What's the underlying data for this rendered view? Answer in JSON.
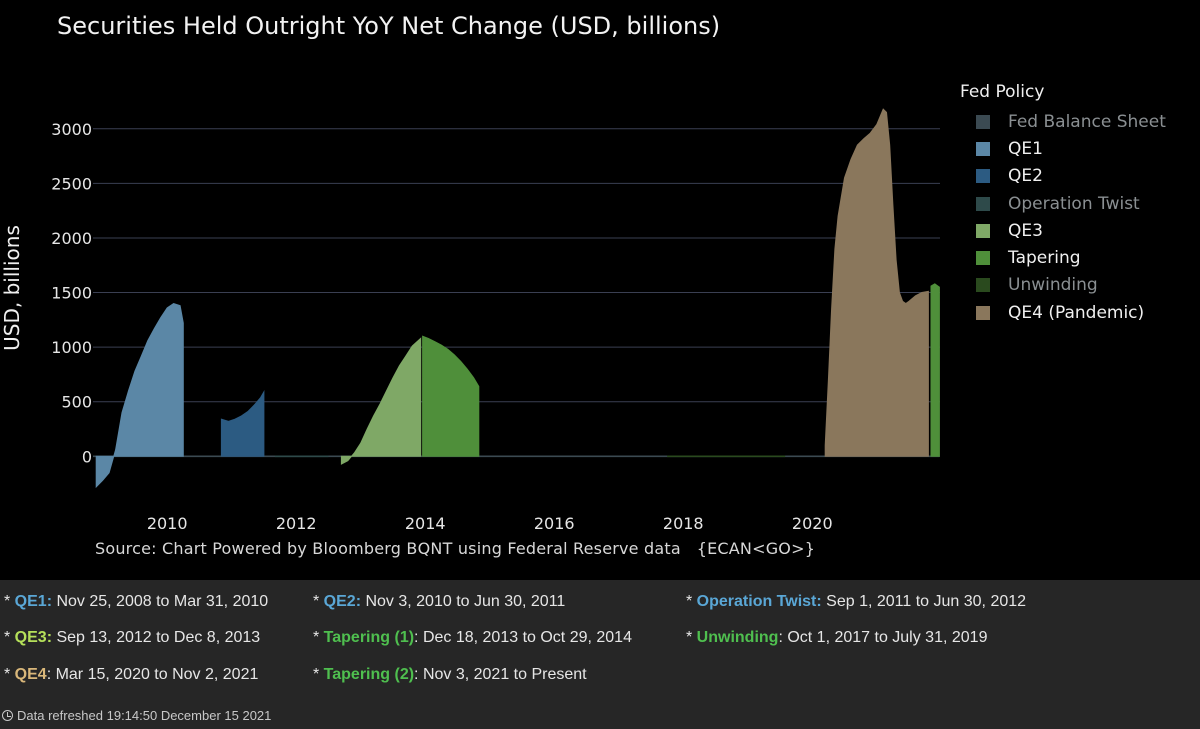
{
  "chart_data": {
    "type": "area",
    "title": "Securities Held Outright YoY Net Change (USD, billions)",
    "ylabel": "USD, billions",
    "xlabel": "",
    "ylim": [
      -400,
      3300
    ],
    "xlim": [
      2008.85,
      2021.98
    ],
    "yticks": [
      0,
      500,
      1000,
      1500,
      2000,
      2500,
      3000
    ],
    "xticks": [
      2010,
      2012,
      2014,
      2016,
      2018,
      2020
    ],
    "grid": "horizontal",
    "legend_title": "Fed Policy",
    "legend_placement": "right",
    "source": "Source: Chart Powered by Bloomberg BQNT using Federal Reserve data   {ECAN<GO>}",
    "series": [
      {
        "name": "Fed Balance Sheet",
        "color": "#3b4a52",
        "label_color": "#8a8f92",
        "x": [
          2008.85,
          2021.97
        ],
        "y": [
          0,
          0
        ]
      },
      {
        "name": "QE1",
        "color": "#5b87a6",
        "label_color": "#f0f0f0",
        "x": [
          2008.9,
          2009.0,
          2009.1,
          2009.2,
          2009.3,
          2009.4,
          2009.5,
          2009.6,
          2009.7,
          2009.8,
          2009.9,
          2010.0,
          2010.1,
          2010.2,
          2010.25
        ],
        "y": [
          -280,
          -220,
          -150,
          60,
          400,
          600,
          780,
          920,
          1060,
          1170,
          1270,
          1360,
          1400,
          1380,
          1220
        ]
      },
      {
        "name": "QE2",
        "color": "#2c5b82",
        "label_color": "#f0f0f0",
        "x": [
          2010.84,
          2010.95,
          2011.05,
          2011.15,
          2011.25,
          2011.35,
          2011.45,
          2011.5
        ],
        "y": [
          340,
          320,
          340,
          370,
          410,
          470,
          540,
          590
        ]
      },
      {
        "name": "Operation Twist",
        "color": "#2e4a4a",
        "label_color": "#8a8f92",
        "x": [
          2011.67,
          2012.5
        ],
        "y": [
          0,
          0
        ]
      },
      {
        "name": "QE3",
        "color": "#7fa866",
        "label_color": "#f0f0f0",
        "x": [
          2012.7,
          2012.8,
          2012.9,
          2013.0,
          2013.1,
          2013.2,
          2013.3,
          2013.4,
          2013.5,
          2013.6,
          2013.7,
          2013.8,
          2013.93
        ],
        "y": [
          -70,
          -40,
          30,
          120,
          250,
          370,
          480,
          600,
          720,
          830,
          920,
          1010,
          1080
        ]
      },
      {
        "name": "Tapering",
        "color": "#4f8f3a",
        "label_color": "#f0f0f0",
        "x": [
          2013.96,
          2014.05,
          2014.15,
          2014.25,
          2014.35,
          2014.45,
          2014.55,
          2014.65,
          2014.75,
          2014.83
        ],
        "y": [
          1100,
          1080,
          1050,
          1020,
          980,
          930,
          870,
          800,
          720,
          640
        ]
      },
      {
        "name": "Unwinding",
        "color": "#2a4a1e",
        "label_color": "#8a8f92",
        "x": [
          2017.75,
          2019.58
        ],
        "y": [
          0,
          0
        ]
      },
      {
        "name": "QE4 (Pandemic)",
        "color": "#8a775c",
        "label_color": "#f0f0f0",
        "x": [
          2020.2,
          2020.25,
          2020.3,
          2020.35,
          2020.4,
          2020.5,
          2020.6,
          2020.7,
          2020.8,
          2020.9,
          2021.0,
          2021.1,
          2021.15,
          2021.2,
          2021.25,
          2021.3,
          2021.35,
          2021.4,
          2021.45,
          2021.5,
          2021.6,
          2021.7,
          2021.8
        ],
        "y": [
          100,
          700,
          1350,
          1900,
          2200,
          2550,
          2720,
          2850,
          2910,
          2960,
          3040,
          3180,
          3150,
          2850,
          2300,
          1800,
          1500,
          1420,
          1400,
          1420,
          1470,
          1500,
          1510
        ]
      },
      {
        "name": "Tapering (2)",
        "color": "#4f8f3a",
        "legend": false,
        "x": [
          2021.84,
          2021.9,
          2021.97
        ],
        "y": [
          1560,
          1580,
          1550
        ]
      }
    ]
  },
  "notes": [
    {
      "prefix": "* ",
      "name": "QE1:",
      "name_color": "#5aa7d6",
      "text": " Nov 25, 2008 to Mar 31, 2010"
    },
    {
      "prefix": "* ",
      "name": "QE2:",
      "name_color": "#5aa7d6",
      "text": " Nov 3, 2010 to Jun 30, 2011"
    },
    {
      "prefix": "* ",
      "name": "Operation Twist:",
      "name_color": "#5aa7d6",
      "text": " Sep 1, 2011 to Jun 30, 2012"
    },
    {
      "prefix": "* ",
      "name": "QE3:",
      "name_color": "#b5e05a",
      "text": " Sep 13, 2012 to Dec 8, 2013"
    },
    {
      "prefix": "* ",
      "name": "Tapering (1)",
      "name_color": "#4fbf4f",
      "text": ": Dec 18, 2013 to Oct 29, 2014"
    },
    {
      "prefix": "* ",
      "name": "Unwinding",
      "name_color": "#4fbf4f",
      "text": ": Oct 1, 2017 to July 31, 2019"
    },
    {
      "prefix": "* ",
      "name": "QE4",
      "name_color": "#d9b77a",
      "text": ": Mar 15, 2020 to Nov 2, 2021"
    },
    {
      "prefix": "* ",
      "name": "Tapering (2)",
      "name_color": "#4fbf4f",
      "text": ": Nov 3, 2021 to Present"
    }
  ],
  "refresh_text": "Data refreshed 19:14:50 December 15 2021"
}
